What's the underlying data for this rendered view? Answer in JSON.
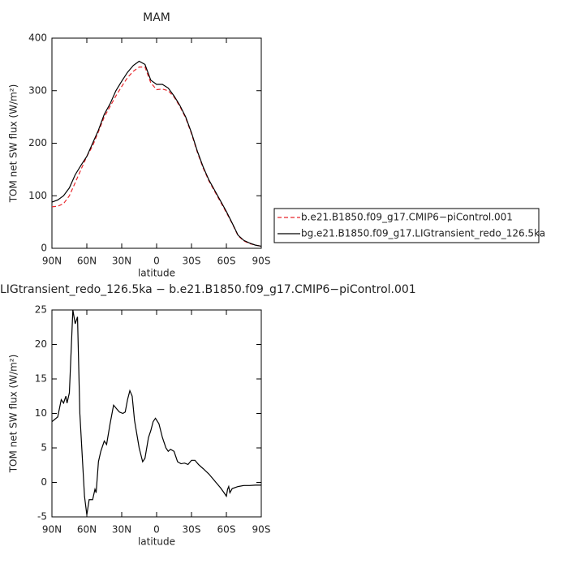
{
  "chart_data": [
    {
      "type": "line",
      "title": "MAM",
      "xlabel": "latitude",
      "ylabel": "TOM net SW flux (W/m²)",
      "x": [
        90,
        85,
        80,
        75,
        70,
        65,
        60,
        55,
        50,
        45,
        40,
        35,
        30,
        25,
        20,
        15,
        10,
        5,
        0,
        -5,
        -10,
        -15,
        -20,
        -25,
        -30,
        -35,
        -40,
        -45,
        -50,
        -55,
        -60,
        -65,
        -70,
        -75,
        -80,
        -85,
        -90
      ],
      "series": [
        {
          "name": "b.e21.B1850.f09_g17.CMIP6−piControl.001",
          "color": "#e8262b",
          "style": "dashed",
          "values": [
            79,
            80,
            85,
            100,
            125,
            150,
            175,
            195,
            222,
            250,
            270,
            290,
            308,
            325,
            337,
            345,
            345,
            315,
            302,
            303,
            300,
            288,
            270,
            248,
            218,
            183,
            153,
            128,
            108,
            88,
            68,
            47,
            24,
            14,
            9,
            6,
            4
          ]
        },
        {
          "name": "bg.e21.B1850.f09_g17.LIGtransient_redo_126.5ka",
          "color": "#000000",
          "style": "solid",
          "values": [
            88,
            92,
            100,
            115,
            140,
            158,
            175,
            200,
            225,
            255,
            275,
            300,
            318,
            335,
            348,
            356,
            350,
            320,
            312,
            312,
            305,
            290,
            272,
            250,
            220,
            185,
            155,
            130,
            110,
            90,
            70,
            48,
            25,
            15,
            10,
            6,
            4
          ]
        }
      ],
      "xlim": [
        90,
        -90
      ],
      "xticks": [
        {
          "value": 90,
          "label": "90N"
        },
        {
          "value": 60,
          "label": "60N"
        },
        {
          "value": 30,
          "label": "30N"
        },
        0,
        {
          "value": -30,
          "label": "30S"
        },
        {
          "value": -60,
          "label": "60S"
        },
        {
          "value": -90,
          "label": "90S"
        }
      ],
      "ylim": [
        0,
        400
      ],
      "yticks": [
        0,
        100,
        200,
        300,
        400
      ],
      "legend": "right"
    },
    {
      "type": "line",
      "title": "LIGtransient_redo_126.5ka − b.e21.B1850.f09_g17.CMIP6−piControl.001",
      "xlabel": "latitude",
      "ylabel": "TOM net SW flux (W/m²)",
      "x": [
        90,
        85,
        82,
        80,
        78,
        77,
        75,
        72,
        70,
        68,
        66,
        64,
        62,
        60,
        58,
        55,
        53,
        52,
        50,
        48,
        45,
        43,
        40,
        37,
        35,
        32,
        29,
        27,
        25,
        23,
        21,
        19,
        15,
        12,
        10,
        7,
        5,
        3,
        1,
        -2,
        -5,
        -8,
        -10,
        -12,
        -15,
        -18,
        -21,
        -24,
        -27,
        -30,
        -33,
        -36,
        -40,
        -45,
        -50,
        -55,
        -58,
        -60,
        -61,
        -62,
        -63,
        -65,
        -70,
        -75,
        -80,
        -85,
        -90
      ],
      "values": [
        8.8,
        9.5,
        12,
        11.5,
        12.5,
        11.5,
        13,
        25,
        23,
        24,
        10,
        4,
        -2,
        -4.7,
        -2.5,
        -2.5,
        -1,
        -1.5,
        3,
        4.5,
        6,
        5.5,
        8.5,
        11.2,
        10.8,
        10.2,
        10,
        10.2,
        12,
        13.3,
        12.5,
        9,
        5,
        3,
        3.5,
        6.5,
        7.5,
        8.8,
        9.3,
        8.5,
        6.5,
        5,
        4.5,
        4.8,
        4.5,
        3,
        2.7,
        2.8,
        2.6,
        3.2,
        3.2,
        2.6,
        2,
        1.2,
        0.2,
        -0.8,
        -1.5,
        -2,
        -1,
        -0.6,
        -1.5,
        -0.9,
        -0.6,
        -0.45,
        -0.45,
        -0.4,
        -0.4
      ],
      "color": "#000000",
      "xlim": [
        90,
        -90
      ],
      "xticks": [
        {
          "value": 90,
          "label": "90N"
        },
        {
          "value": 60,
          "label": "60N"
        },
        {
          "value": 30,
          "label": "30N"
        },
        0,
        {
          "value": -30,
          "label": "30S"
        },
        {
          "value": -60,
          "label": "60S"
        },
        {
          "value": -90,
          "label": "90S"
        }
      ],
      "ylim": [
        -5,
        25
      ],
      "yticks": [
        -5,
        0,
        5,
        10,
        15,
        20,
        25
      ]
    }
  ]
}
